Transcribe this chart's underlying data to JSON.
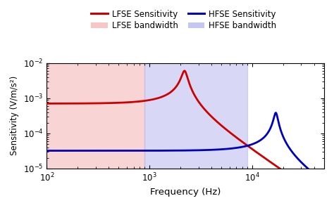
{
  "title": "",
  "xlabel": "Frequency (Hz)",
  "ylabel": "Sensitivity (V/m/s²)",
  "xlim": [
    100,
    50000
  ],
  "ylim": [
    1e-05,
    0.01
  ],
  "lfse_bandwidth": [
    100,
    900
  ],
  "hfse_bandwidth": [
    900,
    9000
  ],
  "lfse_color": "#cc0000",
  "hfse_color": "#0000bb",
  "lfse_bg_color": "#f5b8b8",
  "hfse_bg_color": "#b8b8f0",
  "lfse_bg_alpha": 0.6,
  "hfse_bg_alpha": 0.55,
  "legend_lfse_sens": "LFSE Sensitivity",
  "legend_hfse_sens": "HFSE Sensitivity",
  "legend_lfse_bw": "LFSE bandwidth",
  "legend_hfse_bw": "HFSE bandwidth",
  "lfse_flat": 0.0007,
  "hfse_flat": 3.2e-05,
  "lfse_resonance_freq": 2200,
  "lfse_resonance_q": 8.5,
  "hfse_resonance_freq": 17000,
  "hfse_resonance_q": 12,
  "line_width": 2.0
}
